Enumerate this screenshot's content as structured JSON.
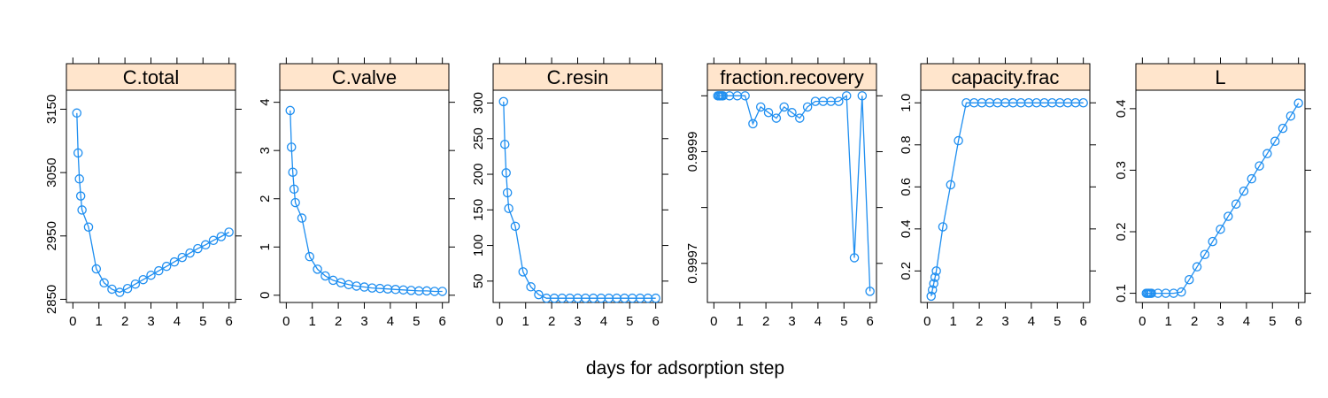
{
  "chart_data": {
    "type": "line",
    "xlabel": "days for adsorption step",
    "x": [
      0.15,
      0.2,
      0.25,
      0.3,
      0.35,
      0.6,
      0.9,
      1.2,
      1.5,
      1.8,
      2.1,
      2.4,
      2.7,
      3.0,
      3.3,
      3.6,
      3.9,
      4.2,
      4.5,
      4.8,
      5.1,
      5.4,
      5.7,
      6.0
    ],
    "xlim": [
      -0.25,
      6.25
    ],
    "xticks": [
      0,
      1,
      2,
      3,
      4,
      5,
      6
    ],
    "xtick_labels": [
      "0",
      "1",
      "2",
      "3",
      "4",
      "5",
      "6"
    ],
    "panels": [
      {
        "title": "C.total",
        "ylim": [
          2845,
          3180
        ],
        "yticks": [
          2850,
          2950,
          3050,
          3150
        ],
        "ytick_labels": [
          "2850",
          "2950",
          "3050",
          "3150"
        ],
        "y": [
          3144,
          3081,
          3040,
          3013,
          2991,
          2964,
          2898,
          2876,
          2866,
          2861,
          2867,
          2874,
          2881,
          2888,
          2895,
          2902,
          2909,
          2916,
          2923,
          2930,
          2936,
          2943,
          2949,
          2956
        ]
      },
      {
        "title": "C.valve",
        "ylim": [
          -0.15,
          4.25
        ],
        "yticks": [
          0,
          1,
          2,
          3,
          4
        ],
        "ytick_labels": [
          "0",
          "1",
          "2",
          "3",
          "4"
        ],
        "y": [
          3.83,
          3.07,
          2.55,
          2.2,
          1.92,
          1.6,
          0.8,
          0.54,
          0.4,
          0.31,
          0.26,
          0.22,
          0.19,
          0.17,
          0.15,
          0.14,
          0.13,
          0.12,
          0.11,
          0.1,
          0.09,
          0.09,
          0.08,
          0.08
        ]
      },
      {
        "title": "C.resin",
        "ylim": [
          20,
          318
        ],
        "yticks": [
          50,
          100,
          150,
          200,
          250,
          300
        ],
        "ytick_labels": [
          "50",
          "100",
          "150",
          "200",
          "250",
          "300"
        ],
        "y": [
          302,
          242,
          202,
          174,
          152,
          127,
          63,
          42,
          31,
          26,
          26,
          26,
          26,
          26,
          26,
          26,
          26,
          26,
          26,
          26,
          26,
          26,
          26,
          26
        ]
      },
      {
        "title": "fraction.recovery",
        "ylim": [
          0.99963,
          1.00001
        ],
        "yticks": [
          0.9997,
          0.9998,
          0.9999,
          1.0
        ],
        "ytick_labels": [
          "0.9997",
          "",
          "0.9999",
          ""
        ],
        "y": [
          1.0,
          1.0,
          1.0,
          1.0,
          1.0,
          1.0,
          1.0,
          1.0,
          0.99995,
          0.99998,
          0.99997,
          0.99996,
          0.99998,
          0.99997,
          0.99996,
          0.99998,
          0.99999,
          0.99999,
          0.99999,
          0.99999,
          1.0,
          0.99971,
          1.0,
          0.99965
        ]
      },
      {
        "title": "capacity.frac",
        "ylim": [
          0.05,
          1.06
        ],
        "yticks": [
          0.2,
          0.4,
          0.6,
          0.8,
          1.0
        ],
        "ytick_labels": [
          "0.2",
          "0.4",
          "0.6",
          "0.8",
          "1.0"
        ],
        "y": [
          0.08,
          0.11,
          0.14,
          0.17,
          0.2,
          0.41,
          0.61,
          0.82,
          1.0,
          1.0,
          1.0,
          1.0,
          1.0,
          1.0,
          1.0,
          1.0,
          1.0,
          1.0,
          1.0,
          1.0,
          1.0,
          1.0,
          1.0,
          1.0
        ]
      },
      {
        "title": "L",
        "ylim": [
          0.085,
          0.43
        ],
        "yticks": [
          0.1,
          0.2,
          0.3,
          0.4
        ],
        "ytick_labels": [
          "0.1",
          "0.2",
          "0.3",
          "0.4"
        ],
        "y": [
          0.1,
          0.1,
          0.1,
          0.1,
          0.1,
          0.1,
          0.1,
          0.1,
          0.102,
          0.122,
          0.143,
          0.163,
          0.184,
          0.204,
          0.225,
          0.245,
          0.266,
          0.286,
          0.307,
          0.327,
          0.347,
          0.368,
          0.388,
          0.409
        ]
      }
    ]
  }
}
